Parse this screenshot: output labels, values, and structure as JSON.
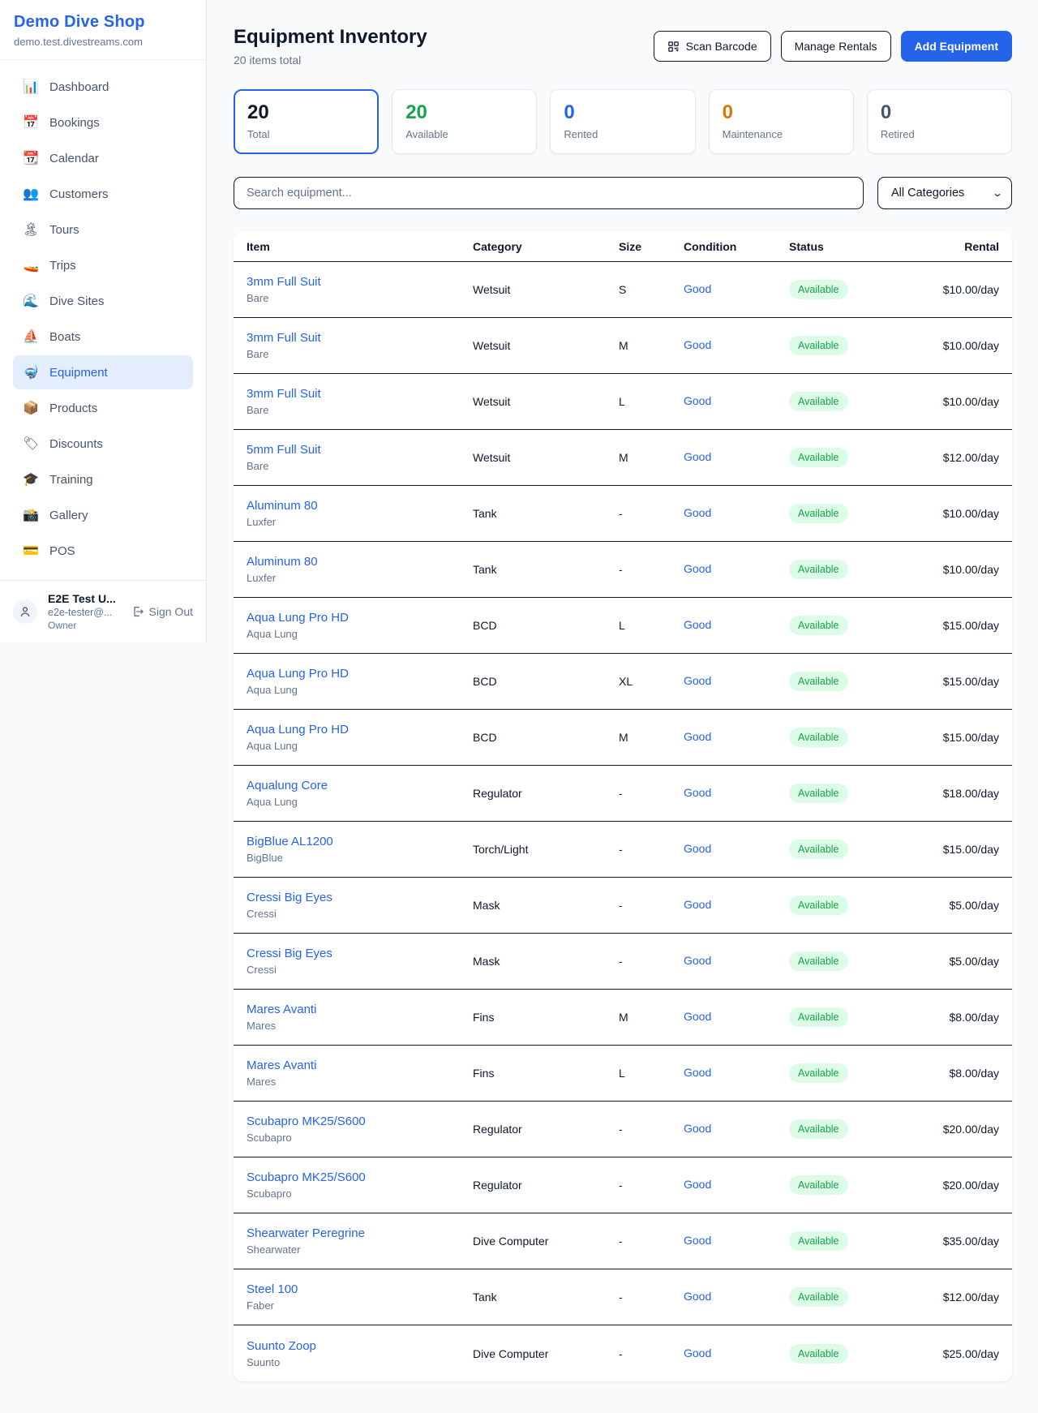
{
  "brand": {
    "name": "Demo Dive Shop",
    "domain": "demo.test.divestreams.com"
  },
  "sidebar": {
    "items": [
      {
        "label": "Dashboard",
        "icon": "bar-chart-icon",
        "glyph": "📊",
        "active": false
      },
      {
        "label": "Bookings",
        "icon": "calendar-date-icon",
        "glyph": "📅",
        "active": false
      },
      {
        "label": "Calendar",
        "icon": "calendar-icon",
        "glyph": "📆",
        "active": false
      },
      {
        "label": "Customers",
        "icon": "people-icon",
        "glyph": "👥",
        "active": false
      },
      {
        "label": "Tours",
        "icon": "island-icon",
        "glyph": "🏝",
        "active": false
      },
      {
        "label": "Trips",
        "icon": "speedboat-icon",
        "glyph": "🚤",
        "active": false
      },
      {
        "label": "Dive Sites",
        "icon": "wave-icon",
        "glyph": "🌊",
        "active": false
      },
      {
        "label": "Boats",
        "icon": "sailboat-icon",
        "glyph": "⛵",
        "active": false
      },
      {
        "label": "Equipment",
        "icon": "dive-mask-icon",
        "glyph": "🤿",
        "active": true
      },
      {
        "label": "Products",
        "icon": "package-icon",
        "glyph": "📦",
        "active": false
      },
      {
        "label": "Discounts",
        "icon": "tag-icon",
        "glyph": "🏷",
        "active": false
      },
      {
        "label": "Training",
        "icon": "graduation-cap-icon",
        "glyph": "🎓",
        "active": false
      },
      {
        "label": "Gallery",
        "icon": "camera-icon",
        "glyph": "📸",
        "active": false
      },
      {
        "label": "POS",
        "icon": "credit-card-icon",
        "glyph": "💳",
        "active": false
      }
    ],
    "user": {
      "name": "E2E Test U...",
      "email": "e2e-tester@...",
      "role": "Owner",
      "sign_out_label": "Sign Out"
    }
  },
  "header": {
    "title": "Equipment Inventory",
    "subtitle": "20 items total",
    "buttons": {
      "scan": "Scan Barcode",
      "manage": "Manage Rentals",
      "add": "Add Equipment"
    }
  },
  "stats": [
    {
      "value": "20",
      "label": "Total",
      "color": "#0f172a",
      "active": true
    },
    {
      "value": "20",
      "label": "Available",
      "color": "#16a34a",
      "active": false
    },
    {
      "value": "0",
      "label": "Rented",
      "color": "#2563eb",
      "active": false
    },
    {
      "value": "0",
      "label": "Maintenance",
      "color": "#d97706",
      "active": false
    },
    {
      "value": "0",
      "label": "Retired",
      "color": "#475569",
      "active": false
    }
  ],
  "filters": {
    "search_placeholder": "Search equipment...",
    "category_selected": "All Categories"
  },
  "table": {
    "columns": [
      "Item",
      "Category",
      "Size",
      "Condition",
      "Status",
      "Rental"
    ],
    "rows": [
      {
        "item": "3mm Full Suit",
        "brand": "Bare",
        "category": "Wetsuit",
        "size": "S",
        "condition": "Good",
        "status": "Available",
        "rental": "$10.00/day"
      },
      {
        "item": "3mm Full Suit",
        "brand": "Bare",
        "category": "Wetsuit",
        "size": "M",
        "condition": "Good",
        "status": "Available",
        "rental": "$10.00/day"
      },
      {
        "item": "3mm Full Suit",
        "brand": "Bare",
        "category": "Wetsuit",
        "size": "L",
        "condition": "Good",
        "status": "Available",
        "rental": "$10.00/day"
      },
      {
        "item": "5mm Full Suit",
        "brand": "Bare",
        "category": "Wetsuit",
        "size": "M",
        "condition": "Good",
        "status": "Available",
        "rental": "$12.00/day"
      },
      {
        "item": "Aluminum 80",
        "brand": "Luxfer",
        "category": "Tank",
        "size": "-",
        "condition": "Good",
        "status": "Available",
        "rental": "$10.00/day"
      },
      {
        "item": "Aluminum 80",
        "brand": "Luxfer",
        "category": "Tank",
        "size": "-",
        "condition": "Good",
        "status": "Available",
        "rental": "$10.00/day"
      },
      {
        "item": "Aqua Lung Pro HD",
        "brand": "Aqua Lung",
        "category": "BCD",
        "size": "L",
        "condition": "Good",
        "status": "Available",
        "rental": "$15.00/day"
      },
      {
        "item": "Aqua Lung Pro HD",
        "brand": "Aqua Lung",
        "category": "BCD",
        "size": "XL",
        "condition": "Good",
        "status": "Available",
        "rental": "$15.00/day"
      },
      {
        "item": "Aqua Lung Pro HD",
        "brand": "Aqua Lung",
        "category": "BCD",
        "size": "M",
        "condition": "Good",
        "status": "Available",
        "rental": "$15.00/day"
      },
      {
        "item": "Aqualung Core",
        "brand": "Aqua Lung",
        "category": "Regulator",
        "size": "-",
        "condition": "Good",
        "status": "Available",
        "rental": "$18.00/day"
      },
      {
        "item": "BigBlue AL1200",
        "brand": "BigBlue",
        "category": "Torch/Light",
        "size": "-",
        "condition": "Good",
        "status": "Available",
        "rental": "$15.00/day"
      },
      {
        "item": "Cressi Big Eyes",
        "brand": "Cressi",
        "category": "Mask",
        "size": "-",
        "condition": "Good",
        "status": "Available",
        "rental": "$5.00/day"
      },
      {
        "item": "Cressi Big Eyes",
        "brand": "Cressi",
        "category": "Mask",
        "size": "-",
        "condition": "Good",
        "status": "Available",
        "rental": "$5.00/day"
      },
      {
        "item": "Mares Avanti",
        "brand": "Mares",
        "category": "Fins",
        "size": "M",
        "condition": "Good",
        "status": "Available",
        "rental": "$8.00/day"
      },
      {
        "item": "Mares Avanti",
        "brand": "Mares",
        "category": "Fins",
        "size": "L",
        "condition": "Good",
        "status": "Available",
        "rental": "$8.00/day"
      },
      {
        "item": "Scubapro MK25/S600",
        "brand": "Scubapro",
        "category": "Regulator",
        "size": "-",
        "condition": "Good",
        "status": "Available",
        "rental": "$20.00/day"
      },
      {
        "item": "Scubapro MK25/S600",
        "brand": "Scubapro",
        "category": "Regulator",
        "size": "-",
        "condition": "Good",
        "status": "Available",
        "rental": "$20.00/day"
      },
      {
        "item": "Shearwater Peregrine",
        "brand": "Shearwater",
        "category": "Dive Computer",
        "size": "-",
        "condition": "Good",
        "status": "Available",
        "rental": "$35.00/day"
      },
      {
        "item": "Steel 100",
        "brand": "Faber",
        "category": "Tank",
        "size": "-",
        "condition": "Good",
        "status": "Available",
        "rental": "$12.00/day"
      },
      {
        "item": "Suunto Zoop",
        "brand": "Suunto",
        "category": "Dive Computer",
        "size": "-",
        "condition": "Good",
        "status": "Available",
        "rental": "$25.00/day"
      }
    ]
  },
  "colors": {
    "accent": "#2563eb",
    "status_available_bg": "#dcfce7",
    "status_available_text": "#16a34a",
    "page_bg": "#f8fafc",
    "row_border": "#0f172a"
  }
}
